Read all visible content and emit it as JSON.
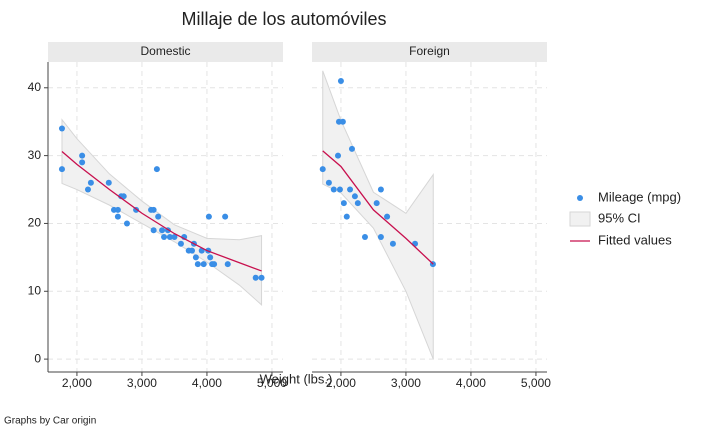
{
  "chart_data": {
    "type": "scatter",
    "title": "Millaje de los automóviles",
    "xlabel": "Weight (lbs.)",
    "note": "Graphs by Car origin",
    "xlim": [
      1555,
      5170
    ],
    "xticks": [
      {
        "value": 2000,
        "label": "2,000"
      },
      {
        "value": 3000,
        "label": "3,000"
      },
      {
        "value": 4000,
        "label": "4,000"
      },
      {
        "value": 5000,
        "label": "5,000"
      }
    ],
    "ylim": [
      -1.9,
      43.8
    ],
    "yticks": [
      0,
      10,
      20,
      30,
      40
    ],
    "grid": true,
    "legend": "right",
    "series": [
      {
        "name": "Mileage (mpg)",
        "color": "#3a8ee6"
      },
      {
        "name": "95% CI",
        "color": "#f1f1f1"
      },
      {
        "name": "Fitted values",
        "color": "#c8104e"
      }
    ],
    "panels": [
      {
        "title": "Domestic",
        "x": [
          1770,
          1770,
          2080,
          2080,
          2170,
          2215,
          2490,
          2570,
          2630,
          2630,
          2680,
          2720,
          2770,
          2910,
          3140,
          3180,
          3230,
          3180,
          3250,
          3310,
          3340,
          3400,
          3430,
          3500,
          3600,
          3650,
          3720,
          3770,
          3800,
          3830,
          3920,
          3950,
          4020,
          4050,
          4080,
          4110,
          4030,
          4280,
          4320,
          4750,
          4840,
          3860
        ],
        "values": [
          34,
          28,
          30,
          29,
          25,
          26,
          26,
          22,
          22,
          21,
          24,
          24,
          20,
          22,
          22,
          22,
          28,
          19,
          21,
          19,
          18,
          19,
          18,
          18,
          17,
          18,
          16,
          16,
          17,
          15,
          16,
          14,
          16,
          15,
          14,
          14,
          21,
          21,
          14,
          12,
          12,
          14
        ],
        "fit_x": [
          1770,
          2000,
          2500,
          3000,
          3500,
          4000,
          4500,
          4840
        ],
        "fit": [
          30.6,
          28.7,
          25,
          21.5,
          18.5,
          16,
          14.2,
          13
        ],
        "ci_upper": [
          35.3,
          32.5,
          27.3,
          23.3,
          19.8,
          17.8,
          17.6,
          18.2
        ],
        "ci_lower": [
          25.9,
          25,
          22.7,
          20,
          17.3,
          14.3,
          10.9,
          8
        ]
      },
      {
        "title": "Foreign",
        "x": [
          1720,
          1815,
          1890,
          1955,
          1985,
          2000,
          1970,
          2030,
          2045,
          2090,
          2140,
          2170,
          2215,
          2260,
          2370,
          2550,
          2615,
          2710,
          2615,
          2800,
          3140,
          3415
        ],
        "values": [
          28,
          26,
          25,
          30,
          25,
          41,
          35,
          35,
          23,
          21,
          25,
          31,
          24,
          23,
          18,
          23,
          25,
          21,
          18,
          17,
          17,
          14
        ],
        "fit_x": [
          1720,
          2000,
          2500,
          3000,
          3420
        ],
        "fit": [
          30.7,
          28.4,
          22,
          17.8,
          14
        ],
        "ci_upper": [
          42.5,
          35.2,
          24.6,
          21.5,
          27.2
        ],
        "ci_lower": [
          25.8,
          24.5,
          19.3,
          10,
          0
        ]
      }
    ]
  }
}
